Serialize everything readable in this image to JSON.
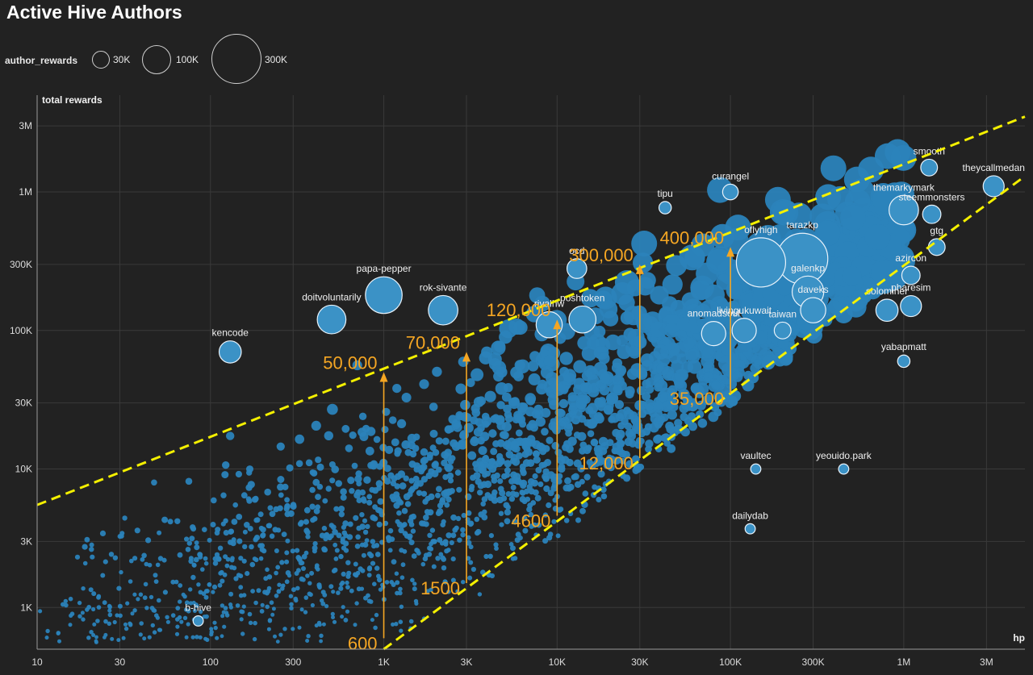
{
  "page_title": "Active Hive Authors",
  "legend": {
    "title": "author_rewards",
    "items": [
      {
        "label": "30K",
        "value": 30000
      },
      {
        "label": "100K",
        "value": 100000
      },
      {
        "label": "300K",
        "value": 300000
      }
    ]
  },
  "colors": {
    "background": "#222222",
    "bubble": "#2b83ba",
    "bubble_light": "#3b92c6",
    "grid": "#3a3a3a",
    "trend": "#f4f000",
    "annotation": "#f5a623"
  },
  "chart_data": {
    "type": "scatter",
    "title": "Active Hive Authors",
    "xlabel": "hp",
    "ylabel": "total rewards",
    "xscale": "log",
    "yscale": "log",
    "xlim": [
      10,
      5000000
    ],
    "ylim": [
      500,
      5000000
    ],
    "x_ticks": [
      {
        "label": "10",
        "value": 10
      },
      {
        "label": "30",
        "value": 30
      },
      {
        "label": "100",
        "value": 100
      },
      {
        "label": "300",
        "value": 300
      },
      {
        "label": "1K",
        "value": 1000
      },
      {
        "label": "3K",
        "value": 3000
      },
      {
        "label": "10K",
        "value": 10000
      },
      {
        "label": "30K",
        "value": 30000
      },
      {
        "label": "100K",
        "value": 100000
      },
      {
        "label": "300K",
        "value": 300000
      },
      {
        "label": "1M",
        "value": 1000000
      },
      {
        "label": "3M",
        "value": 3000000
      }
    ],
    "y_ticks": [
      {
        "label": "1K",
        "value": 1000
      },
      {
        "label": "3K",
        "value": 3000
      },
      {
        "label": "10K",
        "value": 10000
      },
      {
        "label": "30K",
        "value": 30000
      },
      {
        "label": "100K",
        "value": 100000
      },
      {
        "label": "300K",
        "value": 300000
      },
      {
        "label": "1M",
        "value": 1000000
      },
      {
        "label": "3M",
        "value": 3000000
      }
    ],
    "size_legend_field": "author_rewards",
    "labeled_points": [
      {
        "name": "smooth",
        "hp": 1400000,
        "rewards": 1500000,
        "author_rewards": 15000
      },
      {
        "name": "theycallmedan",
        "hp": 3300000,
        "rewards": 1100000,
        "author_rewards": 30000
      },
      {
        "name": "curangel",
        "hp": 100000,
        "rewards": 1000000,
        "author_rewards": 12000
      },
      {
        "name": "tipu",
        "hp": 42000,
        "rewards": 770000,
        "author_rewards": 5000
      },
      {
        "name": "themarkymark",
        "hp": 1000000,
        "rewards": 740000,
        "author_rewards": 75000
      },
      {
        "name": "steemmonsters",
        "hp": 1450000,
        "rewards": 690000,
        "author_rewards": 20000
      },
      {
        "name": "tarazkp",
        "hp": 260000,
        "rewards": 330000,
        "author_rewards": 280000
      },
      {
        "name": "gtg",
        "hp": 1550000,
        "rewards": 400000,
        "author_rewards": 15000
      },
      {
        "name": "oflyhigh",
        "hp": 150000,
        "rewards": 310000,
        "author_rewards": 260000
      },
      {
        "name": "galenkp",
        "hp": 280000,
        "rewards": 190000,
        "author_rewards": 90000
      },
      {
        "name": "azircon",
        "hp": 1100000,
        "rewards": 250000,
        "author_rewards": 20000
      },
      {
        "name": "ocd",
        "hp": 13000,
        "rewards": 280000,
        "author_rewards": 25000
      },
      {
        "name": "papa-pepper",
        "hp": 1000,
        "rewards": 180000,
        "author_rewards": 130000
      },
      {
        "name": "rok-sivante",
        "hp": 2200,
        "rewards": 140000,
        "author_rewards": 75000
      },
      {
        "name": "doitvoluntarily",
        "hp": 500,
        "rewards": 120000,
        "author_rewards": 70000
      },
      {
        "name": "poshtoken",
        "hp": 14000,
        "rewards": 120000,
        "author_rewards": 60000
      },
      {
        "name": "daveks",
        "hp": 300000,
        "rewards": 140000,
        "author_rewards": 50000
      },
      {
        "name": "pharesim",
        "hp": 1100000,
        "rewards": 150000,
        "author_rewards": 30000
      },
      {
        "name": "solominer",
        "hp": 800000,
        "rewards": 140000,
        "author_rewards": 35000
      },
      {
        "name": "rivalhw",
        "hp": 9000,
        "rewards": 110000,
        "author_rewards": 55000
      },
      {
        "name": "livingukuwait",
        "hp": 120000,
        "rewards": 100000,
        "author_rewards": 45000
      },
      {
        "name": "taiwan",
        "hp": 200000,
        "rewards": 100000,
        "author_rewards": 15000
      },
      {
        "name": "anomadsoul",
        "hp": 80000,
        "rewards": 95000,
        "author_rewards": 45000
      },
      {
        "name": "kencode",
        "hp": 130,
        "rewards": 70000,
        "author_rewards": 35000
      },
      {
        "name": "yabapmatt",
        "hp": 1000000,
        "rewards": 60000,
        "author_rewards": 5000
      },
      {
        "name": "vaultec",
        "hp": 140000,
        "rewards": 10000,
        "author_rewards": 2000
      },
      {
        "name": "yeouido.park",
        "hp": 450000,
        "rewards": 10000,
        "author_rewards": 2000
      },
      {
        "name": "dailydab",
        "hp": 130000,
        "rewards": 3700,
        "author_rewards": 2000
      },
      {
        "name": "b-hive",
        "hp": 85,
        "rewards": 800,
        "author_rewards": 2000
      }
    ],
    "trend_lines": [
      {
        "name": "upper",
        "from": {
          "hp": 10,
          "rewards": 5500
        },
        "to": {
          "hp": 5000000,
          "rewards": 3500000
        }
      },
      {
        "name": "lower",
        "from": {
          "hp": 1000,
          "rewards": 500
        },
        "to": {
          "hp": 5000000,
          "rewards": 1300000
        }
      }
    ],
    "range_annotations": [
      {
        "hp": 1000,
        "low_label": "600",
        "high_label": "50,000",
        "low": 600,
        "high": 50000
      },
      {
        "hp": 3000,
        "low_label": "1500",
        "high_label": "70,000",
        "low": 1500,
        "high": 70000
      },
      {
        "hp": 10000,
        "low_label": "4600",
        "high_label": "120,000",
        "low": 4600,
        "high": 120000
      },
      {
        "hp": 30000,
        "low_label": "12,000",
        "high_label": "300,000",
        "low": 12000,
        "high": 300000
      },
      {
        "hp": 100000,
        "low_label": "35,000",
        "high_label": "400,000",
        "low": 35000,
        "high": 400000
      }
    ]
  }
}
